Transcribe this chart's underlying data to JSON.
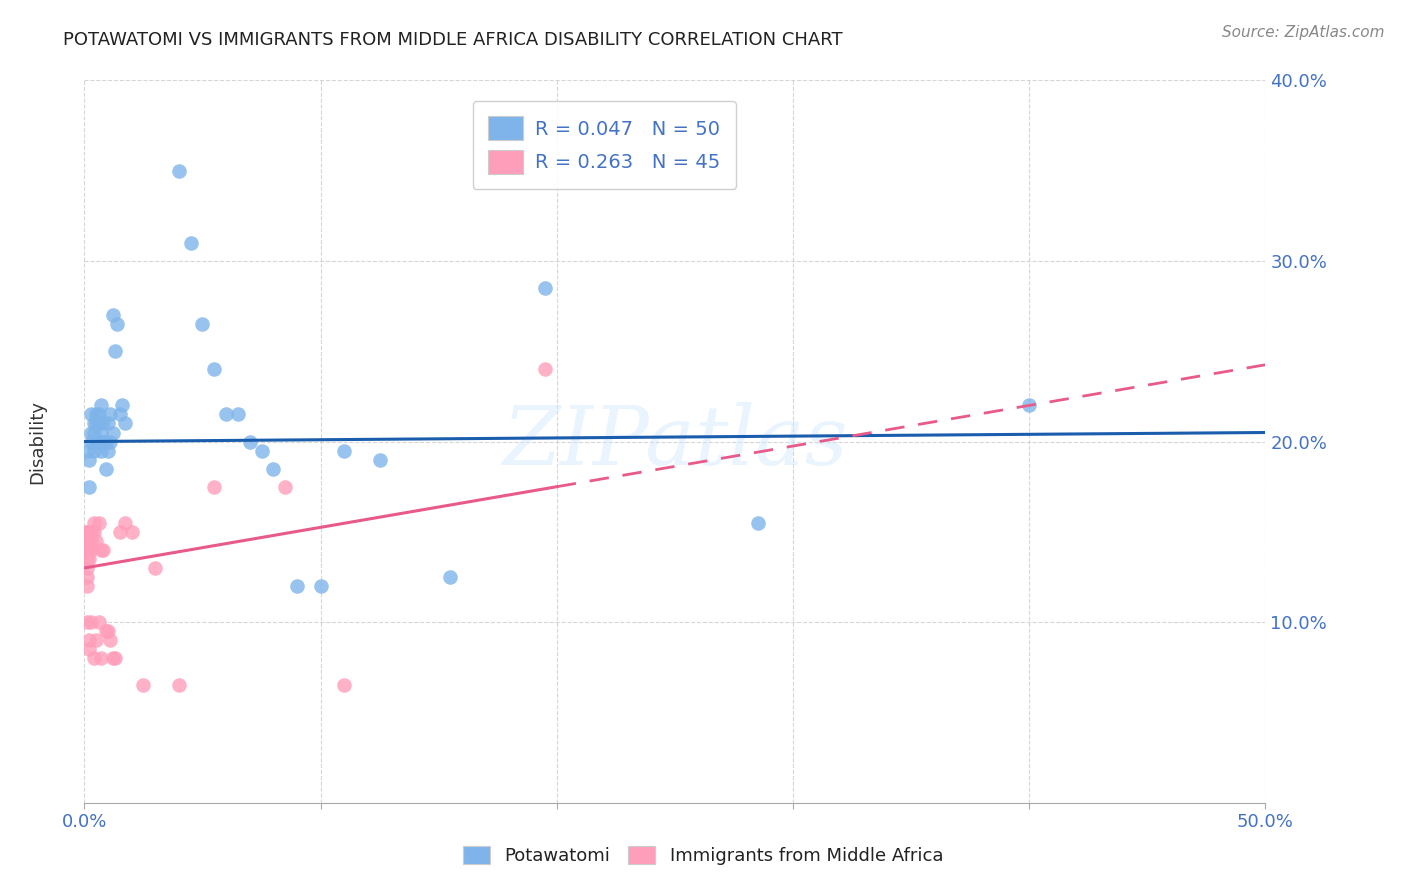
{
  "title": "POTAWATOMI VS IMMIGRANTS FROM MIDDLE AFRICA DISABILITY CORRELATION CHART",
  "source": "Source: ZipAtlas.com",
  "ylabel_label": "Disability",
  "xlim": [
    0,
    0.5
  ],
  "ylim": [
    0,
    0.4
  ],
  "blue_color": "#7EB4EA",
  "pink_color": "#FF9EBA",
  "line_blue": "#1A5DAD",
  "line_pink": "#E85A8A",
  "tick_color": "#4472C4",
  "R_blue": 0.047,
  "N_blue": 50,
  "R_pink": 0.263,
  "N_pink": 45,
  "blue_scatter_x": [
    0.001,
    0.002,
    0.002,
    0.003,
    0.003,
    0.003,
    0.004,
    0.004,
    0.004,
    0.005,
    0.005,
    0.005,
    0.006,
    0.006,
    0.006,
    0.007,
    0.007,
    0.007,
    0.008,
    0.008,
    0.009,
    0.009,
    0.01,
    0.01,
    0.011,
    0.011,
    0.012,
    0.012,
    0.013,
    0.014,
    0.015,
    0.016,
    0.017,
    0.04,
    0.045,
    0.05,
    0.055,
    0.06,
    0.065,
    0.07,
    0.075,
    0.08,
    0.09,
    0.1,
    0.11,
    0.125,
    0.155,
    0.195,
    0.285,
    0.4
  ],
  "blue_scatter_y": [
    0.195,
    0.19,
    0.175,
    0.2,
    0.205,
    0.215,
    0.195,
    0.205,
    0.21,
    0.2,
    0.21,
    0.215,
    0.2,
    0.21,
    0.215,
    0.195,
    0.205,
    0.22,
    0.2,
    0.21,
    0.185,
    0.2,
    0.195,
    0.21,
    0.2,
    0.215,
    0.205,
    0.27,
    0.25,
    0.265,
    0.215,
    0.22,
    0.21,
    0.35,
    0.31,
    0.265,
    0.24,
    0.215,
    0.215,
    0.2,
    0.195,
    0.185,
    0.12,
    0.12,
    0.195,
    0.19,
    0.125,
    0.285,
    0.155,
    0.22
  ],
  "pink_scatter_x": [
    0.001,
    0.001,
    0.001,
    0.001,
    0.001,
    0.001,
    0.001,
    0.001,
    0.001,
    0.001,
    0.002,
    0.002,
    0.002,
    0.002,
    0.002,
    0.002,
    0.003,
    0.003,
    0.003,
    0.003,
    0.004,
    0.004,
    0.004,
    0.005,
    0.005,
    0.006,
    0.006,
    0.007,
    0.007,
    0.008,
    0.009,
    0.01,
    0.011,
    0.012,
    0.013,
    0.015,
    0.017,
    0.02,
    0.025,
    0.03,
    0.04,
    0.055,
    0.085,
    0.11,
    0.195
  ],
  "pink_scatter_y": [
    0.15,
    0.15,
    0.15,
    0.145,
    0.14,
    0.135,
    0.13,
    0.125,
    0.12,
    0.1,
    0.15,
    0.145,
    0.14,
    0.135,
    0.09,
    0.085,
    0.15,
    0.145,
    0.14,
    0.1,
    0.155,
    0.15,
    0.08,
    0.145,
    0.09,
    0.155,
    0.1,
    0.14,
    0.08,
    0.14,
    0.095,
    0.095,
    0.09,
    0.08,
    0.08,
    0.15,
    0.155,
    0.15,
    0.065,
    0.13,
    0.065,
    0.175,
    0.175,
    0.065,
    0.24
  ],
  "watermark": "ZIPatlas",
  "background_color": "#FFFFFF",
  "grid_color": "#CCCCCC"
}
